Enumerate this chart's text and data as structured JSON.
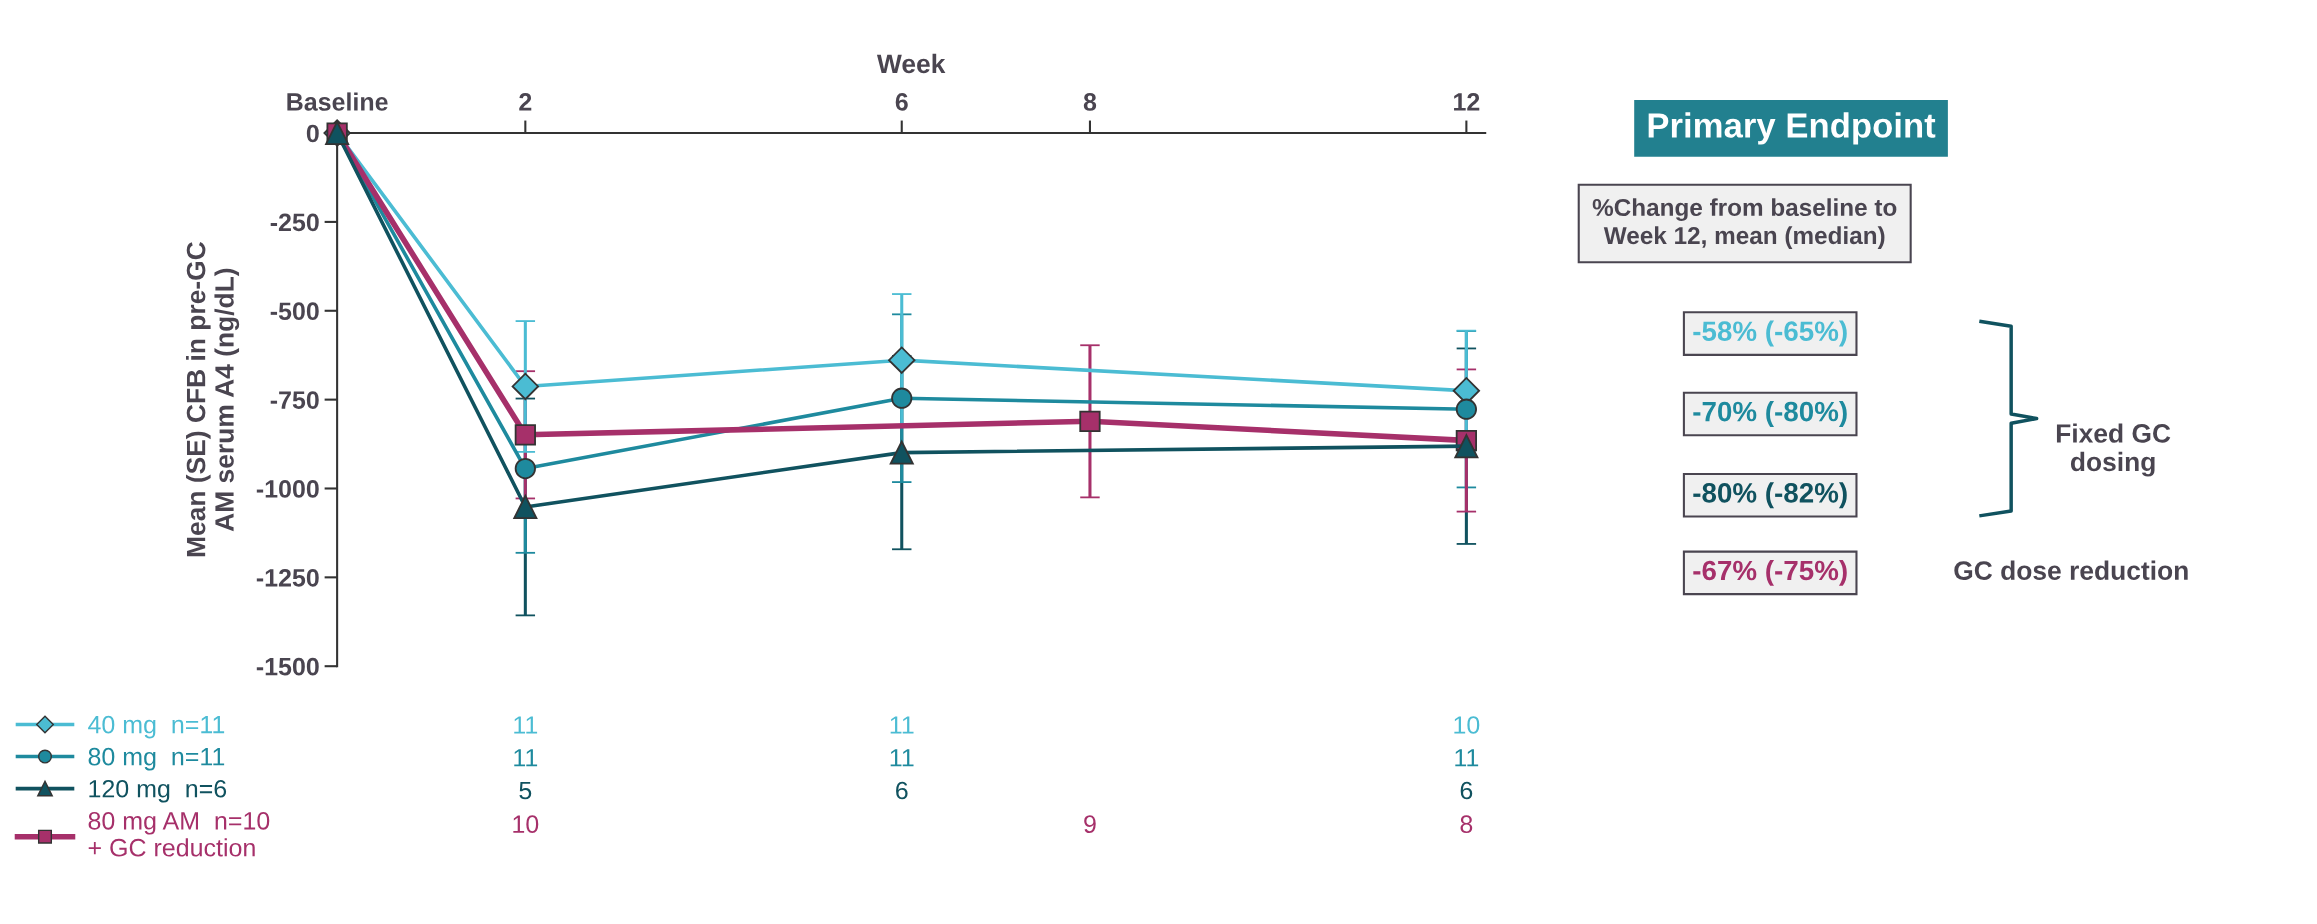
{
  "chart_data": {
    "type": "line",
    "xlabel": "Week",
    "ylabel": "Mean (SE) CFB in pre-GC\nAM serum A4 (ng/dL)",
    "xlim": [
      0,
      12.2
    ],
    "xticks": [
      {
        "value": 0,
        "label": "Baseline"
      },
      2,
      6,
      8,
      12
    ],
    "ylim": [
      -1500,
      0
    ],
    "yticks": [
      0,
      -250,
      -500,
      -750,
      -1000,
      -1250,
      -1500
    ],
    "grid": false,
    "legend": "bottom left",
    "line_style": "solid",
    "series": [
      {
        "name": "40 mg  n=11",
        "color": "#4bbcd3",
        "marker": "diamond",
        "x": [
          0,
          2,
          6,
          12
        ],
        "values": [
          0,
          -713,
          -639,
          -725
        ],
        "errors": [
          null,
          184,
          186,
          169
        ]
      },
      {
        "name": "80 mg  n=11",
        "color": "#1e8a9e",
        "marker": "circle",
        "x": [
          0,
          2,
          6,
          12
        ],
        "values": [
          0,
          -944,
          -746,
          -777
        ],
        "errors": [
          null,
          237,
          236,
          220
        ]
      },
      {
        "name": "120 mg  n=6",
        "color": "#10525f",
        "marker": "triangle",
        "x": [
          0,
          2,
          6,
          12
        ],
        "values": [
          0,
          -1052,
          -899,
          -881
        ],
        "errors": [
          null,
          305,
          272,
          275
        ]
      },
      {
        "name": "80 mg AM  n=10\n+ GC reduction",
        "color": "#a6306a",
        "marker": "square",
        "x": [
          0,
          2,
          8,
          12
        ],
        "values": [
          0,
          -849,
          -811,
          -865
        ],
        "errors": [
          null,
          179,
          214,
          200
        ]
      }
    ],
    "annotations": [
      "Primary Endpoint",
      "%Change from baseline to\nWeek 12, mean (median)",
      "-58% (-65%)",
      "-70% (-80%)",
      "-80% (-82%)",
      "-67% (-75%)",
      "Fixed GC\ndosing",
      "GC dose reduction",
      "11",
      "11",
      "10",
      "11",
      "11",
      "11",
      "5",
      "6",
      "6",
      "10",
      "9",
      "8"
    ]
  }
}
